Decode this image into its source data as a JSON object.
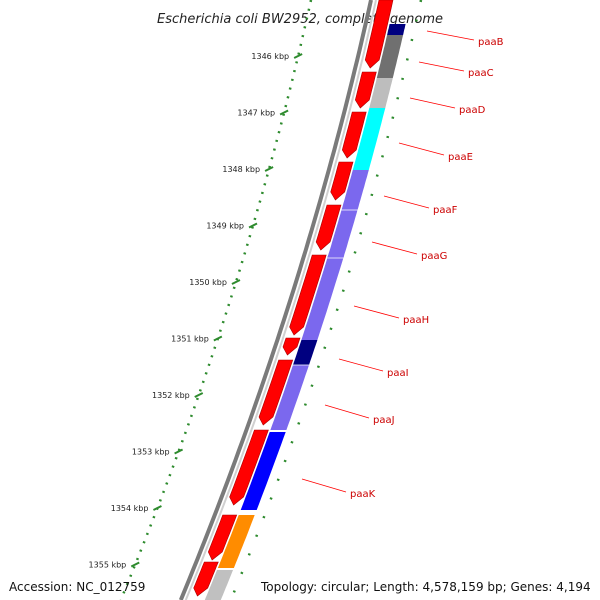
{
  "title": "Escherichia coli BW2952, complete genome",
  "accession": "Accession: NC_012759",
  "topology": "Topology: circular; Length: 4,578,159 bp; Genes: 4,194",
  "colors": {
    "backbone": "#888888",
    "forward_cds": "#ff0000",
    "tick": "#2e8b2e",
    "label": "#cc0000",
    "leader": "#ff0000"
  },
  "kbp_ticks": [
    "1346 kbp",
    "1347 kbp",
    "1348 kbp",
    "1349 kbp",
    "1350 kbp",
    "1351 kbp",
    "1352 kbp",
    "1353 kbp",
    "1354 kbp",
    "1355 kbp"
  ],
  "genes": [
    {
      "name": "paaB",
      "color": "#000080"
    },
    {
      "name": "paaC",
      "color": "#707070"
    },
    {
      "name": "paaD",
      "color": "#bdbdbd"
    },
    {
      "name": "paaE",
      "color": "#00ffff"
    },
    {
      "name": "paaF",
      "color": "#7b68ee"
    },
    {
      "name": "paaG",
      "color": "#7b68ee"
    },
    {
      "name": "paaH",
      "color": "#7b68ee"
    },
    {
      "name": "paaI",
      "color": "#000080"
    },
    {
      "name": "paaJ",
      "color": "#7b68ee"
    },
    {
      "name": "paaK",
      "color": "#0000ff"
    }
  ],
  "extra_segments": [
    {
      "color": "#ff8c00"
    },
    {
      "color": "#c0c0c0"
    }
  ]
}
